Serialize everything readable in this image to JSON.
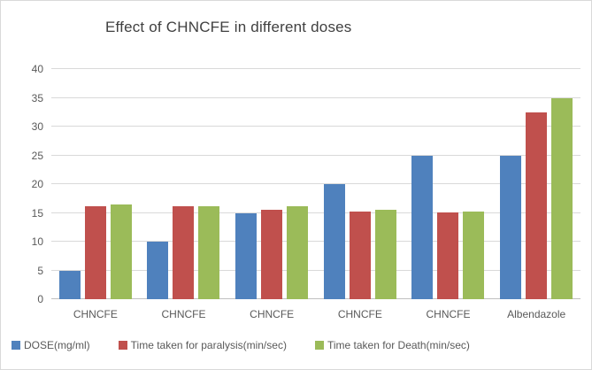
{
  "chart_data": {
    "type": "bar",
    "title": "Effect of CHNCFE in different doses",
    "categories": [
      "CHNCFE",
      "CHNCFE",
      "CHNCFE",
      "CHNCFE",
      "CHNCFE",
      "Albendazole"
    ],
    "series": [
      {
        "name": "DOSE(mg/ml)",
        "color": "#4F81BD",
        "values": [
          5,
          10,
          15,
          20,
          25,
          25
        ]
      },
      {
        "name": "Time taken for paralysis(min/sec)",
        "color": "#C0504D",
        "values": [
          16.1,
          16.1,
          15.5,
          15.3,
          15.1,
          32.5
        ]
      },
      {
        "name": "Time taken for Death(min/sec)",
        "color": "#9BBB59",
        "values": [
          16.5,
          16.2,
          16.1,
          15.5,
          15.2,
          35
        ]
      }
    ],
    "xlabel": "",
    "ylabel": "",
    "ylim": [
      0,
      40
    ],
    "ytick_step": 5,
    "ytick_labels": [
      "0",
      "5",
      "10",
      "15",
      "20",
      "25",
      "30",
      "35",
      "40"
    ],
    "grid": true,
    "legend_position": "bottom-left",
    "styling": {
      "gridline_color": "#D9D9D9",
      "axis_line_color": "#BFBFBF",
      "tick_text_color": "#595959",
      "title_color": "#404040",
      "frame_border_color": "#D9D9D9",
      "background_color": "#FFFFFF"
    }
  }
}
